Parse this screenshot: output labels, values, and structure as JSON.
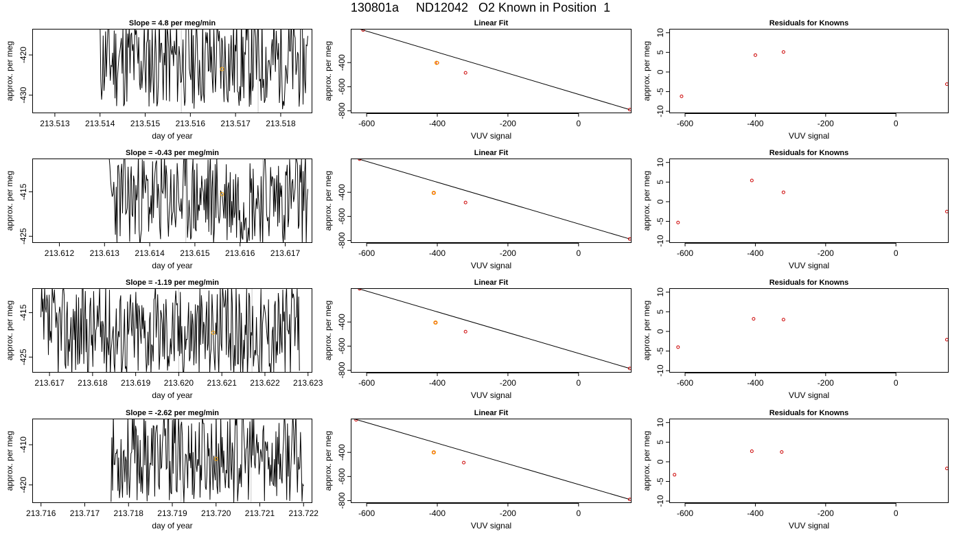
{
  "figure": {
    "title": "130801a     ND12042   O2 Known in Position  1",
    "colors": {
      "line": "#000000",
      "residual": "#cc0000",
      "highlight": "#ffa500",
      "marker": "#c8c8c8"
    }
  },
  "chart_data": [
    {
      "type": "line",
      "title": "Slope =  4.8  per meg/min",
      "xlabel": "day of year",
      "ylabel": "approx. per meg",
      "xlim": [
        213.5125,
        213.5187
      ],
      "ylim": [
        -434.5,
        -413.5
      ],
      "xticks": [
        213.513,
        213.514,
        213.515,
        213.516,
        213.517,
        213.518
      ],
      "xtick_labels": [
        "213.513",
        "213.514",
        "213.515",
        "213.516",
        "213.517",
        "213.518"
      ],
      "yticks": [
        -420,
        -430
      ],
      "ytick_labels": [
        "-420",
        "-430"
      ],
      "markers_x": [
        213.5158,
        213.5175
      ],
      "highlight": {
        "x": 213.5167,
        "y": -423.5
      },
      "x_start": 213.514,
      "x_end": 213.5186,
      "y_center": -421.5,
      "y_amp": 9,
      "seed": 11
    },
    {
      "type": "line",
      "title": "Slope =  -0.43  per meg/min",
      "xlabel": "day of year",
      "ylabel": "approx. per meg",
      "xlim": [
        213.6114,
        213.6176
      ],
      "ylim": [
        -426.5,
        -407.5
      ],
      "xticks": [
        213.612,
        213.613,
        213.614,
        213.615,
        213.616,
        213.617
      ],
      "xtick_labels": [
        "213.612",
        "213.613",
        "213.614",
        "213.615",
        "213.616",
        "213.617"
      ],
      "yticks": [
        -415,
        -425
      ],
      "ytick_labels": [
        "-415",
        "-425"
      ],
      "markers_x": [
        213.6148,
        213.6165
      ],
      "highlight": {
        "x": 213.6156,
        "y": -415.5
      },
      "x_start": 213.6131,
      "x_end": 213.6175,
      "y_center": -416.5,
      "y_amp": 8,
      "seed": 23
    },
    {
      "type": "line",
      "title": "Slope =  -1.19  per meg/min",
      "xlabel": "day of year",
      "ylabel": "approx. per meg",
      "xlim": [
        213.6166,
        213.6231
      ],
      "ylim": [
        -428.5,
        -409.5
      ],
      "xticks": [
        213.617,
        213.618,
        213.619,
        213.62,
        213.621,
        213.622,
        213.623
      ],
      "xtick_labels": [
        "213.617",
        "213.618",
        "213.619",
        "213.620",
        "213.621",
        "213.622",
        "213.623"
      ],
      "yticks": [
        -415,
        -425
      ],
      "ytick_labels": [
        "-415",
        "-425"
      ],
      "markers_x": [
        213.62,
        213.6217
      ],
      "highlight": {
        "x": 213.6208,
        "y": -419.5
      },
      "x_start": 213.6168,
      "x_end": 213.6228,
      "y_center": -419,
      "y_amp": 8,
      "seed": 37
    },
    {
      "type": "line",
      "title": "Slope =  -2.62  per meg/min",
      "xlabel": "day of year",
      "ylabel": "approx. per meg",
      "xlim": [
        213.7158,
        213.7222
      ],
      "ylim": [
        -424.5,
        -403.5
      ],
      "xticks": [
        213.716,
        213.717,
        213.718,
        213.719,
        213.72,
        213.721,
        213.722
      ],
      "xtick_labels": [
        "213.716",
        "213.717",
        "213.718",
        "213.719",
        "213.720",
        "213.721",
        "213.722"
      ],
      "yticks": [
        -410,
        -420
      ],
      "ytick_labels": [
        "-410",
        "-420"
      ],
      "markers_x": [
        213.7192,
        213.7208
      ],
      "highlight": {
        "x": 213.72,
        "y": -413.5
      },
      "x_start": 213.7176,
      "x_end": 213.722,
      "y_center": -413,
      "y_amp": 8.5,
      "seed": 53
    },
    {
      "type": "scatter",
      "title": "Linear Fit",
      "xlabel": "VUV signal",
      "ylabel": "approx. per meg",
      "xlim": [
        -645,
        150
      ],
      "ylim": [
        -820,
        -120
      ],
      "xticks": [
        -600,
        -400,
        -200,
        0
      ],
      "xtick_labels": [
        "-600",
        "-400",
        "-200",
        "0"
      ],
      "yticks": [
        -400,
        -600,
        -800
      ],
      "ytick_labels": [
        "-400",
        "-600",
        "-800"
      ],
      "points": [
        [
          -610,
          -130
        ],
        [
          -400,
          -402
        ],
        [
          -320,
          -485
        ],
        [
          145,
          -790
        ]
      ],
      "highlight": {
        "x": -402,
        "y": -402
      },
      "fit_line": [
        [
          -630,
          -113
        ],
        [
          145,
          -790
        ]
      ]
    },
    {
      "type": "scatter",
      "title": "Linear Fit",
      "xlabel": "VUV signal",
      "ylabel": "approx. per meg",
      "xlim": [
        -645,
        150
      ],
      "ylim": [
        -820,
        -120
      ],
      "xticks": [
        -600,
        -400,
        -200,
        0
      ],
      "xtick_labels": [
        "-600",
        "-400",
        "-200",
        "0"
      ],
      "yticks": [
        -400,
        -600,
        -800
      ],
      "ytick_labels": [
        "-400",
        "-600",
        "-800"
      ],
      "points": [
        [
          -620,
          -125
        ],
        [
          -410,
          -405
        ],
        [
          -320,
          -485
        ],
        [
          145,
          -787
        ]
      ],
      "highlight": {
        "x": -410,
        "y": -405
      },
      "fit_line": [
        [
          -630,
          -118
        ],
        [
          145,
          -787
        ]
      ]
    },
    {
      "type": "scatter",
      "title": "Linear Fit",
      "xlabel": "VUV signal",
      "ylabel": "approx. per meg",
      "xlim": [
        -645,
        150
      ],
      "ylim": [
        -820,
        -120
      ],
      "xticks": [
        -600,
        -400,
        -200,
        0
      ],
      "xtick_labels": [
        "-600",
        "-400",
        "-200",
        "0"
      ],
      "yticks": [
        -400,
        -600,
        -800
      ],
      "ytick_labels": [
        "-400",
        "-600",
        "-800"
      ],
      "points": [
        [
          -620,
          -125
        ],
        [
          -405,
          -405
        ],
        [
          -320,
          -480
        ],
        [
          145,
          -785
        ]
      ],
      "highlight": {
        "x": -405,
        "y": -405
      },
      "fit_line": [
        [
          -630,
          -118
        ],
        [
          145,
          -785
        ]
      ]
    },
    {
      "type": "scatter",
      "title": "Linear Fit",
      "xlabel": "VUV signal",
      "ylabel": "approx. per meg",
      "xlim": [
        -645,
        150
      ],
      "ylim": [
        -820,
        -120
      ],
      "xticks": [
        -600,
        -400,
        -200,
        0
      ],
      "xtick_labels": [
        "-600",
        "-400",
        "-200",
        "0"
      ],
      "yticks": [
        -400,
        -600,
        -800
      ],
      "ytick_labels": [
        "-400",
        "-600",
        "-800"
      ],
      "points": [
        [
          -630,
          -130
        ],
        [
          -410,
          -400
        ],
        [
          -325,
          -485
        ],
        [
          145,
          -790
        ]
      ],
      "highlight": {
        "x": -410,
        "y": -400
      },
      "fit_line": [
        [
          -635,
          -123
        ],
        [
          145,
          -790
        ]
      ]
    },
    {
      "type": "scatter",
      "title": "Residuals for Knowns",
      "xlabel": "VUV signal",
      "ylabel": "approx. per meg",
      "xlim": [
        -645,
        150
      ],
      "ylim": [
        -10.5,
        11
      ],
      "xticks": [
        -600,
        -400,
        -200,
        0
      ],
      "xtick_labels": [
        "-600",
        "-400",
        "-200",
        "0"
      ],
      "yticks": [
        10,
        5,
        0,
        -5,
        -10
      ],
      "ytick_labels": [
        "10",
        "5",
        "0",
        "-5",
        "-10"
      ],
      "points": [
        [
          -610,
          -6.2
        ],
        [
          -400,
          4.3
        ],
        [
          -320,
          5.1
        ],
        [
          145,
          -3.1
        ]
      ]
    },
    {
      "type": "scatter",
      "title": "Residuals for Knowns",
      "xlabel": "VUV signal",
      "ylabel": "approx. per meg",
      "xlim": [
        -645,
        150
      ],
      "ylim": [
        -10.5,
        11
      ],
      "xticks": [
        -600,
        -400,
        -200,
        0
      ],
      "xtick_labels": [
        "-600",
        "-400",
        "-200",
        "0"
      ],
      "yticks": [
        10,
        5,
        0,
        -5,
        -10
      ],
      "ytick_labels": [
        "10",
        "5",
        "0",
        "-5",
        "-10"
      ],
      "points": [
        [
          -620,
          -5.3
        ],
        [
          -410,
          5.4
        ],
        [
          -320,
          2.4
        ],
        [
          145,
          -2.5
        ]
      ]
    },
    {
      "type": "scatter",
      "title": "Residuals for Knowns",
      "xlabel": "VUV signal",
      "ylabel": "approx. per meg",
      "xlim": [
        -645,
        150
      ],
      "ylim": [
        -10.5,
        11
      ],
      "xticks": [
        -600,
        -400,
        -200,
        0
      ],
      "xtick_labels": [
        "-600",
        "-400",
        "-200",
        "0"
      ],
      "yticks": [
        10,
        5,
        0,
        -5,
        -10
      ],
      "ytick_labels": [
        "10",
        "5",
        "0",
        "-5",
        "-10"
      ],
      "points": [
        [
          -620,
          -4.0
        ],
        [
          -405,
          3.2
        ],
        [
          -320,
          3.0
        ],
        [
          145,
          -2.1
        ]
      ]
    },
    {
      "type": "scatter",
      "title": "Residuals for Knowns",
      "xlabel": "VUV signal",
      "ylabel": "approx. per meg",
      "xlim": [
        -645,
        150
      ],
      "ylim": [
        -10.5,
        11
      ],
      "xticks": [
        -600,
        -400,
        -200,
        0
      ],
      "xtick_labels": [
        "-600",
        "-400",
        "-200",
        "0"
      ],
      "yticks": [
        10,
        5,
        0,
        -5,
        -10
      ],
      "ytick_labels": [
        "10",
        "5",
        "0",
        "-5",
        "-10"
      ],
      "points": [
        [
          -630,
          -3.3
        ],
        [
          -410,
          2.7
        ],
        [
          -325,
          2.5
        ],
        [
          145,
          -1.7
        ]
      ]
    }
  ]
}
